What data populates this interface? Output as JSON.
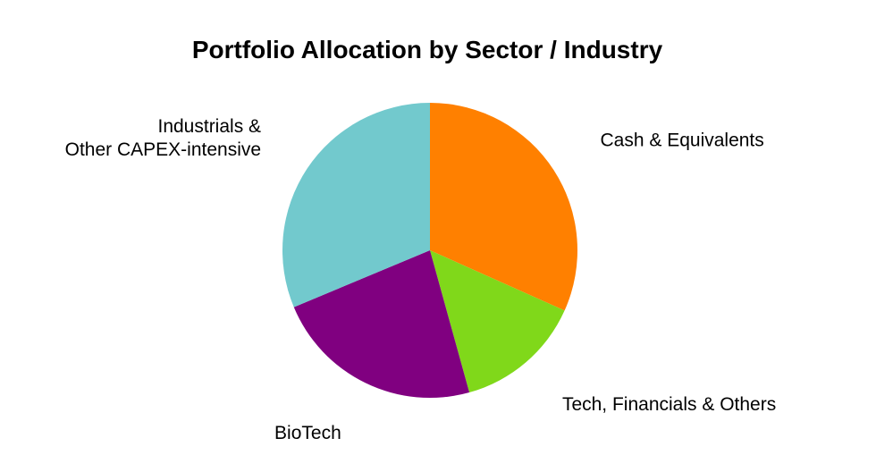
{
  "chart_data": {
    "type": "pie",
    "title": "Portfolio Allocation by Sector / Industry",
    "start_angle_deg": 90,
    "direction": "clockwise",
    "slices": [
      {
        "label_lines": [
          "Cash & Equivalents"
        ],
        "value": 31.7,
        "color": "#FF8000"
      },
      {
        "label_lines": [
          "Tech, Financials & Others"
        ],
        "value": 14.0,
        "color": "#80D81A"
      },
      {
        "label_lines": [
          "BioTech"
        ],
        "value": 23.0,
        "color": "#800080"
      },
      {
        "label_lines": [
          "Industrials &",
          "Other CAPEX-intensive"
        ],
        "value": 31.3,
        "color": "#72C9CD"
      }
    ]
  }
}
